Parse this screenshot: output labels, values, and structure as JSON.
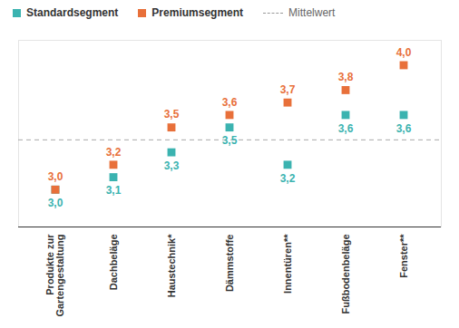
{
  "chart_data": {
    "type": "scatter",
    "categories": [
      "Produkte zur Gartengestaltung",
      "Dachbeläge",
      "Haustechnik*",
      "Dämmstoffe",
      "Innentüren**",
      "Fußbodenbeläge",
      "Fenster**"
    ],
    "series": [
      {
        "name": "Standardsegment",
        "color": "#3bb3b0",
        "marker": "square",
        "values": [
          3.0,
          3.1,
          3.3,
          3.5,
          3.2,
          3.6,
          3.6
        ],
        "value_labels": [
          "3,0",
          "3,1",
          "3,3",
          "3,5",
          "3,2",
          "3,6",
          "3,6"
        ]
      },
      {
        "name": "Premiumsegment",
        "color": "#e8703a",
        "marker": "square",
        "values": [
          3.0,
          3.2,
          3.5,
          3.6,
          3.7,
          3.8,
          4.0
        ],
        "value_labels": [
          "3,0",
          "3,2",
          "3,5",
          "3,6",
          "3,7",
          "3,8",
          "4,0"
        ]
      }
    ],
    "reference_line": {
      "value": 3.4,
      "label": "Mittelwert",
      "line_style": "dashed"
    },
    "ylim": [
      2.7,
      4.2
    ],
    "tick_labels": "x",
    "data_labels": true,
    "legend": "top",
    "grid": false
  }
}
